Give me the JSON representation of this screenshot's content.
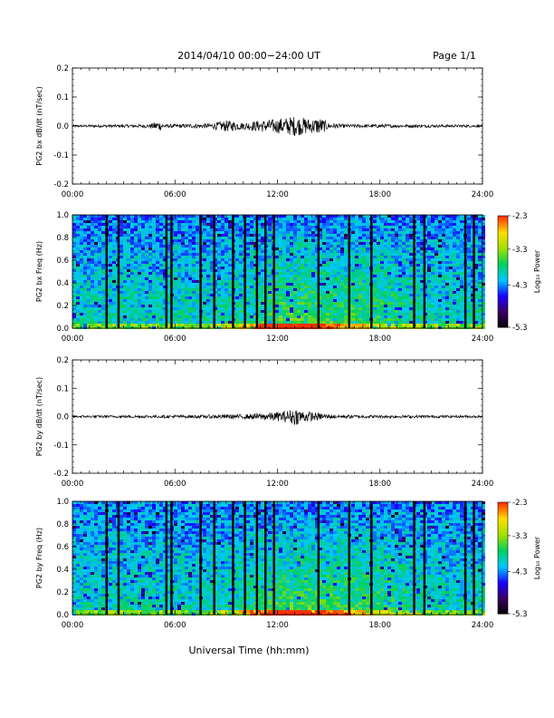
{
  "header": {
    "title": "2014/04/10  00:00−24:00 UT",
    "page": "Page 1/1"
  },
  "footer": {
    "xlabel": "Universal Time (hh:mm)"
  },
  "colorbar": {
    "label": "Log₁₀ Power",
    "ticks": [
      "-2.3",
      "-3.3",
      "-4.3",
      "-5.3"
    ],
    "range": [
      -5.3,
      -2.3
    ],
    "palette": [
      "#000000",
      "#3a0060",
      "#1a00ff",
      "#00c8ff",
      "#00d060",
      "#9fe000",
      "#ffe000",
      "#ff3000"
    ]
  },
  "chart_data": [
    {
      "type": "line",
      "ylabel": "PG2 bx dB/dt (nT/sec)",
      "ylim": [
        -0.2,
        0.2
      ],
      "yticks": [
        "0.2",
        "0.1",
        "0.0",
        "-0.1",
        "-0.2"
      ],
      "xlim": [
        0,
        24
      ],
      "xticks": [
        "00:00",
        "06:00",
        "12:00",
        "18:00",
        "24:00"
      ],
      "envelope_hours": [
        0,
        3,
        4.5,
        5,
        5.5,
        8,
        9,
        10,
        11,
        11.5,
        12,
        12.5,
        13,
        13.5,
        14,
        14.5,
        15,
        16,
        18,
        20,
        24
      ],
      "envelope_amp": [
        0.004,
        0.005,
        0.006,
        0.018,
        0.006,
        0.008,
        0.02,
        0.012,
        0.02,
        0.022,
        0.025,
        0.03,
        0.035,
        0.03,
        0.025,
        0.03,
        0.01,
        0.006,
        0.006,
        0.005,
        0.004
      ]
    },
    {
      "type": "heatmap",
      "ylabel": "PG2 bx Freq (Hz)",
      "ylim": [
        0.0,
        1.0
      ],
      "yticks": [
        "1.0",
        "0.8",
        "0.6",
        "0.4",
        "0.2",
        "0.0"
      ],
      "xlim": [
        0,
        24
      ],
      "xticks": [
        "00:00",
        "06:00",
        "12:00",
        "18:00",
        "24:00"
      ],
      "gap_hours": [
        2.0,
        2.7,
        5.5,
        5.8,
        7.5,
        8.3,
        9.4,
        10.1,
        10.8,
        11.3,
        11.8,
        14.4,
        16.2,
        17.5,
        20.0,
        20.6,
        23.0,
        23.5
      ]
    },
    {
      "type": "line",
      "ylabel": "PG2 by dB/dt (nT/sec)",
      "ylim": [
        -0.2,
        0.2
      ],
      "yticks": [
        "0.2",
        "0.1",
        "0.0",
        "-0.1",
        "-0.2"
      ],
      "xlim": [
        0,
        24
      ],
      "xticks": [
        "00:00",
        "06:00",
        "12:00",
        "18:00",
        "24:00"
      ],
      "envelope_hours": [
        0,
        5,
        8,
        9,
        10,
        11,
        11.5,
        12,
        12.5,
        13,
        13.5,
        14,
        14.5,
        15,
        16,
        18,
        20,
        24
      ],
      "envelope_amp": [
        0.004,
        0.005,
        0.006,
        0.008,
        0.008,
        0.012,
        0.014,
        0.016,
        0.02,
        0.03,
        0.022,
        0.016,
        0.012,
        0.008,
        0.006,
        0.005,
        0.005,
        0.004
      ]
    },
    {
      "type": "heatmap",
      "ylabel": "PG2 by Freq (Hz)",
      "ylim": [
        0.0,
        1.0
      ],
      "yticks": [
        "1.0",
        "0.8",
        "0.6",
        "0.4",
        "0.2",
        "0.0"
      ],
      "xlim": [
        0,
        24
      ],
      "xticks": [
        "00:00",
        "06:00",
        "12:00",
        "18:00",
        "24:00"
      ],
      "gap_hours": [
        2.0,
        2.7,
        5.5,
        5.8,
        7.5,
        8.3,
        9.4,
        10.1,
        10.8,
        11.3,
        11.8,
        14.4,
        16.2,
        17.5,
        20.0,
        20.6,
        23.0,
        23.5
      ]
    }
  ]
}
